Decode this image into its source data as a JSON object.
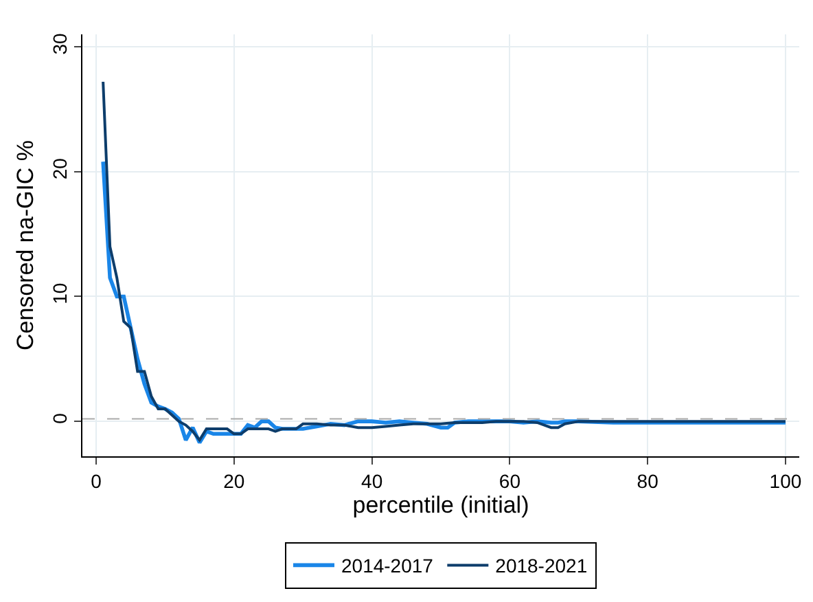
{
  "chart_data": {
    "type": "line",
    "xlabel": "percentile (initial)",
    "ylabel": "Censored na-GIC %",
    "xlim": [
      -2,
      102
    ],
    "xticks": [
      0,
      20,
      40,
      60,
      80,
      100
    ],
    "ylim": [
      -2.8,
      31
    ],
    "yticks": [
      0,
      10,
      20,
      30
    ],
    "grid": true,
    "legend": "bottom",
    "marker": "none",
    "line_style": "solid",
    "ref_lines": [
      {
        "axis": "y",
        "value": 0.2,
        "color": "#aaaaaa",
        "line_style": "dashed"
      }
    ],
    "series": [
      {
        "name": "2014-2017",
        "color": "#1a86e8",
        "x": [
          1,
          2,
          3,
          4,
          5,
          6,
          7,
          8,
          9,
          10,
          11,
          12,
          13,
          14,
          15,
          16,
          17,
          18,
          19,
          20,
          21,
          22,
          23,
          24,
          25,
          26,
          27,
          28,
          29,
          30,
          32,
          34,
          36,
          38,
          40,
          42,
          44,
          46,
          48,
          50,
          51,
          52,
          54,
          56,
          58,
          60,
          62,
          64,
          66,
          67,
          68,
          70,
          75,
          80,
          85,
          90,
          95,
          100
        ],
        "values": [
          20.8,
          11.5,
          10,
          10,
          7.5,
          5,
          3,
          1.5,
          1.2,
          1,
          0.7,
          0.2,
          -1.5,
          -0.5,
          -1.7,
          -0.8,
          -1,
          -1,
          -1,
          -1,
          -1,
          -0.3,
          -0.5,
          0,
          0,
          -0.5,
          -0.6,
          -0.6,
          -0.6,
          -0.6,
          -0.4,
          -0.2,
          -0.3,
          0,
          0,
          -0.1,
          0,
          -0.1,
          -0.2,
          -0.5,
          -0.5,
          -0.1,
          0,
          0,
          0,
          0,
          -0.1,
          0,
          -0.1,
          -0.1,
          0,
          0,
          -0.1,
          -0.1,
          -0.1,
          -0.1,
          -0.1,
          -0.1
        ]
      },
      {
        "name": "2018-2021",
        "color": "#0d3d6b",
        "x": [
          1,
          2,
          3,
          4,
          5,
          6,
          7,
          8,
          9,
          10,
          11,
          12,
          13,
          14,
          15,
          16,
          17,
          18,
          19,
          20,
          21,
          22,
          23,
          24,
          25,
          26,
          27,
          28,
          29,
          30,
          32,
          34,
          36,
          38,
          40,
          42,
          44,
          46,
          48,
          50,
          52,
          54,
          56,
          58,
          60,
          62,
          64,
          66,
          67,
          68,
          70,
          75,
          80,
          85,
          90,
          95,
          100
        ],
        "values": [
          27.2,
          14,
          11.5,
          8,
          7.5,
          4,
          4,
          2,
          1,
          1,
          0.5,
          0,
          -0.3,
          -0.8,
          -1.5,
          -0.6,
          -0.6,
          -0.6,
          -0.6,
          -1,
          -1,
          -0.6,
          -0.6,
          -0.6,
          -0.6,
          -0.8,
          -0.6,
          -0.6,
          -0.6,
          -0.2,
          -0.2,
          -0.3,
          -0.3,
          -0.5,
          -0.5,
          -0.4,
          -0.3,
          -0.2,
          -0.2,
          -0.2,
          -0.1,
          -0.1,
          -0.1,
          0,
          0,
          0,
          -0.1,
          -0.5,
          -0.5,
          -0.2,
          0,
          0,
          0,
          0,
          0,
          0,
          0
        ]
      }
    ]
  }
}
